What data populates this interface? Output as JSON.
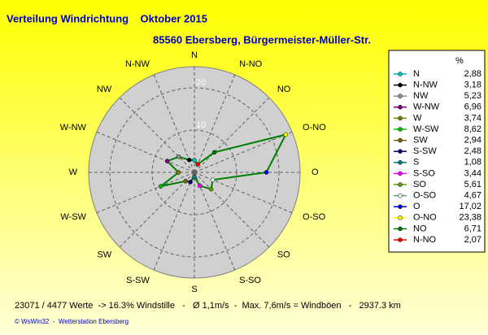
{
  "chart_data": {
    "type": "radar",
    "title": "Verteilung Windrichtung    Oktober 2015",
    "subtitle": "85560 Ebersberg, Bürgermeister-Müller-Str.",
    "legend_header": "%",
    "categories": [
      "N",
      "N-NW",
      "NW",
      "W-NW",
      "W",
      "W-SW",
      "SW",
      "S-SW",
      "S",
      "S-SO",
      "SO",
      "O-SO",
      "O",
      "O-NO",
      "NO",
      "N-NO"
    ],
    "values": [
      2.88,
      3.18,
      5.23,
      6.96,
      3.74,
      8.62,
      2.94,
      2.48,
      1.08,
      3.44,
      5.61,
      4.67,
      17.02,
      23.38,
      6.71,
      2.07
    ],
    "value_labels": [
      "2,88",
      "3,18",
      "5,23",
      "6,96",
      "3,74",
      "8,62",
      "2,94",
      "2,48",
      "1,08",
      "3,44",
      "5,61",
      "4,67",
      "17,02",
      "23,38",
      "6,71",
      "2,07"
    ],
    "colors": [
      "#00c0c0",
      "#000000",
      "#909090",
      "#800080",
      "#808000",
      "#00c000",
      "#806000",
      "#000080",
      "#008080",
      "#ff00ff",
      "#60a000",
      "#e0ffe0",
      "#0000ff",
      "#ffff00",
      "#008000",
      "#ff0000"
    ],
    "line_color": "#008000",
    "rlim": [
      0,
      25
    ],
    "rticks": [
      10,
      20
    ],
    "footer": "23071 / 4477 Werte  -> 16.3% Windstille   -   Ø 1,1m/s  -  Max. 7,6m/s = Windböen   -   2937.3 km",
    "credit": "© WsWin32  -  Wetterstation Ebersberg"
  }
}
